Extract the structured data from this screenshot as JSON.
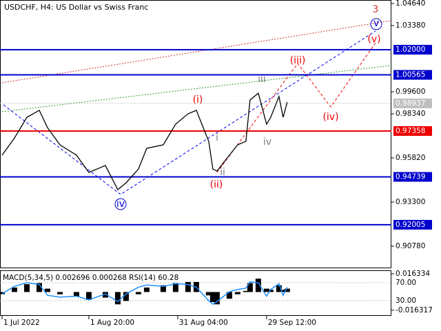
{
  "chart_data": [
    {
      "type": "line",
      "title": "USDCHF, H4:  US Dollar vs Swiss Franc",
      "color": "#000000",
      "x": [
        0,
        3,
        6,
        9,
        11,
        14,
        18,
        21,
        25,
        28,
        30,
        33,
        35,
        39,
        42,
        45,
        47,
        50,
        51,
        52,
        55,
        57,
        59,
        60,
        62,
        64,
        65,
        67,
        68,
        69
      ],
      "values": [
        0.9598,
        0.9696,
        0.9814,
        0.9854,
        0.9755,
        0.9657,
        0.9598,
        0.9499,
        0.9539,
        0.9401,
        0.944,
        0.9519,
        0.9637,
        0.9657,
        0.9775,
        0.9834,
        0.9854,
        0.9677,
        0.9519,
        0.9507,
        0.9598,
        0.9657,
        0.9677,
        0.9913,
        0.9952,
        0.9775,
        0.9814,
        0.9933,
        0.9814,
        0.9901
      ],
      "xlim": [
        -0.5,
        94.2
      ],
      "ylim": [
        0.8956,
        1.0484
      ],
      "yticks": [
        {
          "value": 1.0464,
          "label": "1.04640"
        },
        {
          "value": 1.0338,
          "label": "1.03380"
        },
        {
          "value": 0.996,
          "label": "0.99600"
        },
        {
          "value": 0.9834,
          "label": "0.98340"
        },
        {
          "value": 0.9582,
          "label": "0.95820"
        },
        {
          "value": 0.933,
          "label": "0.93300"
        },
        {
          "value": 0.9078,
          "label": "0.90780"
        }
      ],
      "xticks": [
        {
          "value": 0,
          "label": "1 Jul 2022"
        },
        {
          "value": 21,
          "label": "1 Aug 20:00"
        },
        {
          "value": 42.5,
          "label": "31 Aug 04:00"
        },
        {
          "value": 64,
          "label": "29 Sep 12:00"
        }
      ],
      "levels": [
        {
          "value": 1.02,
          "label": "1.02000",
          "color": "#0000cd"
        },
        {
          "value": 1.00565,
          "label": "1.00565",
          "color": "#0000cd"
        },
        {
          "value": 0.97358,
          "label": "0.97358",
          "color": "#ee0000"
        },
        {
          "value": 0.94739,
          "label": "0.94739",
          "color": "#0000cd"
        },
        {
          "value": 0.92005,
          "label": "0.92005",
          "color": "#0000cd"
        }
      ],
      "last": {
        "value": 0.98937,
        "label": "0.98937",
        "color": "#c0c0c0"
      },
      "annotations": [
        "3",
        "v",
        "(v)",
        "(iii)",
        "iii",
        "(i)",
        "i",
        "(iv)",
        "iv",
        "(ii)",
        "ii",
        "iv"
      ]
    },
    {
      "type": "macd",
      "title": "MACD(5,34,5) 0.002696 0.000268 RSI(14) 60.28",
      "x": [
        0,
        3,
        6,
        9,
        11,
        14,
        18,
        21,
        25,
        28,
        30,
        33,
        35,
        39,
        42,
        45,
        47,
        50,
        51,
        52,
        55,
        57,
        59,
        60,
        62,
        64,
        65,
        67,
        68,
        69
      ],
      "macd": [
        -0.002,
        0.004,
        0.007,
        0.008,
        0.003,
        -0.002,
        -0.004,
        -0.007,
        -0.005,
        -0.011,
        -0.008,
        -0.002,
        0.004,
        0.006,
        0.008,
        0.009,
        0.009,
        -0.003,
        -0.009,
        -0.011,
        -0.006,
        -0.002,
        0.001,
        0.008,
        0.012,
        0.003,
        0.002,
        0.006,
        0.002,
        0.003
      ],
      "rsi": [
        45,
        62,
        70,
        66,
        42,
        38,
        40,
        32,
        45,
        28,
        45,
        60,
        65,
        62,
        68,
        66,
        60,
        30,
        22,
        28,
        50,
        55,
        58,
        72,
        70,
        40,
        55,
        68,
        42,
        60
      ],
      "rsi_color": "#1e90ff",
      "ylim": [
        -0.0213,
        0.0188
      ],
      "yticks": [
        0.016334,
        -0.016317
      ],
      "y2lim": [
        -3.8,
        96.2
      ],
      "y2ticks": [
        {
          "value": 70,
          "label": "70.00"
        },
        {
          "value": 30,
          "label": "30.00"
        }
      ]
    }
  ]
}
